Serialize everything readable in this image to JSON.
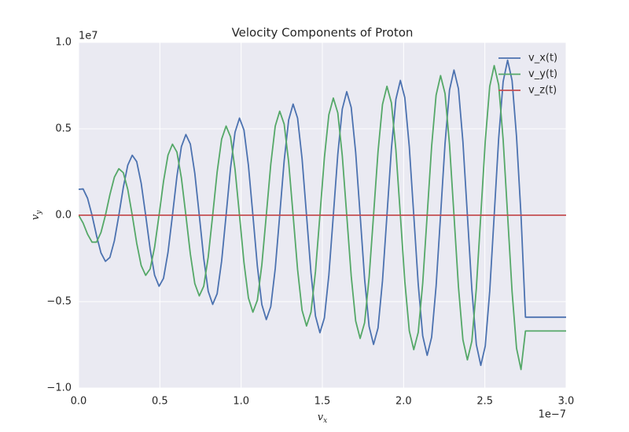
{
  "chart_data": {
    "type": "line",
    "title": "Velocity Components of Proton",
    "xlabel": {
      "text": "v",
      "subscript": "x"
    },
    "ylabel": {
      "text": "v",
      "subscript": "y"
    },
    "x_offset_label": "1e−7",
    "y_offset_label": "1e7",
    "xlim": [
      0,
      3.0
    ],
    "ylim": [
      -1.0,
      1.0
    ],
    "xticks": [
      {
        "value": 0,
        "label": "0.0"
      },
      {
        "value": 0.5,
        "label": "0.5"
      },
      {
        "value": 1.0,
        "label": "1.0"
      },
      {
        "value": 1.5,
        "label": "1.5"
      },
      {
        "value": 2.0,
        "label": "2.0"
      },
      {
        "value": 2.5,
        "label": "2.5"
      },
      {
        "value": 3.0,
        "label": "3.0"
      }
    ],
    "yticks": [
      {
        "value": -1.0,
        "label": "−1.0"
      },
      {
        "value": -0.5,
        "label": "−0.5"
      },
      {
        "value": 0,
        "label": "0.0"
      },
      {
        "value": 0.5,
        "label": "0.5"
      },
      {
        "value": 1.0,
        "label": "1.0"
      }
    ],
    "grid": true,
    "legend_position": "upper-right",
    "x": [
      0,
      0.0275,
      0.055,
      0.0825,
      0.11,
      0.1375,
      0.165,
      0.1925,
      0.22,
      0.2475,
      0.275,
      0.3025,
      0.33,
      0.3575,
      0.385,
      0.4125,
      0.44,
      0.4675,
      0.495,
      0.5225,
      0.55,
      0.5775,
      0.605,
      0.6325,
      0.66,
      0.6875,
      0.715,
      0.7425,
      0.77,
      0.7975,
      0.825,
      0.8525,
      0.88,
      0.9075,
      0.935,
      0.9625,
      0.99,
      1.0175,
      1.045,
      1.0725,
      1.1,
      1.1275,
      1.155,
      1.1825,
      1.21,
      1.2375,
      1.265,
      1.2925,
      1.32,
      1.3475,
      1.375,
      1.4025,
      1.43,
      1.4575,
      1.485,
      1.5125,
      1.54,
      1.5675,
      1.595,
      1.6225,
      1.65,
      1.6775,
      1.705,
      1.7325,
      1.76,
      1.7875,
      1.815,
      1.8425,
      1.87,
      1.8975,
      1.925,
      1.9525,
      1.98,
      2.0075,
      2.035,
      2.0625,
      2.09,
      2.1175,
      2.145,
      2.1725,
      2.2,
      2.2275,
      2.255,
      2.2825,
      2.31,
      2.3375,
      2.365,
      2.3925,
      2.42,
      2.4475,
      2.475,
      2.5025,
      2.53,
      2.5575,
      2.585,
      2.6125,
      2.64,
      2.6675,
      2.695,
      2.7225,
      2.75,
      3.0
    ],
    "series": [
      {
        "name": "v_x(t)",
        "color": "#4c72b0",
        "values": [
          0.15,
          0.152,
          0.098,
          0,
          -0.117,
          -0.218,
          -0.267,
          -0.244,
          -0.148,
          0,
          0.161,
          0.29,
          0.347,
          0.31,
          0.185,
          0,
          -0.195,
          -0.347,
          -0.411,
          -0.365,
          -0.215,
          0,
          0.225,
          0.397,
          0.467,
          0.412,
          0.242,
          0,
          -0.25,
          -0.44,
          -0.516,
          -0.454,
          -0.266,
          0,
          0.274,
          0.48,
          0.562,
          0.493,
          0.288,
          0,
          -0.295,
          -0.517,
          -0.604,
          -0.529,
          -0.309,
          0,
          0.315,
          0.551,
          0.643,
          0.562,
          0.328,
          0,
          -0.334,
          -0.583,
          -0.68,
          -0.594,
          -0.346,
          0,
          0.352,
          0.614,
          0.715,
          0.624,
          0.363,
          0,
          -0.369,
          -0.643,
          -0.748,
          -0.653,
          -0.38,
          0,
          0.385,
          0.671,
          0.78,
          0.68,
          0.395,
          0,
          -0.4,
          -0.698,
          -0.811,
          -0.706,
          -0.41,
          0,
          0.415,
          0.724,
          0.84,
          0.732,
          0.425,
          0,
          -0.43,
          -0.748,
          -0.869,
          -0.757,
          -0.439,
          0,
          0.444,
          0.773,
          0.897,
          0.78,
          0.453,
          0,
          -0.59,
          -0.59
        ]
      },
      {
        "name": "v_y(t)",
        "color": "#55a868",
        "values": [
          0,
          -0.045,
          -0.11,
          -0.156,
          -0.156,
          -0.1,
          0,
          0.119,
          0.22,
          0.269,
          0.246,
          0.149,
          0,
          -0.162,
          -0.291,
          -0.348,
          -0.311,
          -0.185,
          0,
          0.196,
          0.348,
          0.411,
          0.365,
          0.215,
          0,
          -0.224,
          -0.396,
          -0.467,
          -0.411,
          -0.242,
          0,
          0.25,
          0.44,
          0.516,
          0.453,
          0.266,
          0,
          -0.273,
          -0.479,
          -0.561,
          -0.492,
          -0.287,
          0,
          0.294,
          0.516,
          0.602,
          0.527,
          0.308,
          0,
          -0.314,
          -0.55,
          -0.641,
          -0.561,
          -0.327,
          0,
          0.333,
          0.582,
          0.678,
          0.592,
          0.345,
          0,
          -0.351,
          -0.612,
          -0.713,
          -0.622,
          -0.362,
          0,
          0.367,
          0.641,
          0.746,
          0.65,
          0.378,
          0,
          -0.384,
          -0.669,
          -0.778,
          -0.678,
          -0.394,
          0,
          0.399,
          0.695,
          0.808,
          0.704,
          0.409,
          0,
          -0.414,
          -0.721,
          -0.837,
          -0.729,
          -0.424,
          0,
          0.428,
          0.746,
          0.866,
          0.754,
          0.438,
          0,
          -0.442,
          -0.77,
          -0.893,
          -0.67,
          -0.67
        ]
      },
      {
        "name": "v_z(t)",
        "color": "#c44e52",
        "values": [
          0,
          0,
          0,
          0,
          0,
          0,
          0,
          0,
          0,
          0,
          0,
          0,
          0,
          0,
          0,
          0,
          0,
          0,
          0,
          0,
          0,
          0,
          0,
          0,
          0,
          0,
          0,
          0,
          0,
          0,
          0,
          0,
          0,
          0,
          0,
          0,
          0,
          0,
          0,
          0,
          0,
          0,
          0,
          0,
          0,
          0,
          0,
          0,
          0,
          0,
          0,
          0,
          0,
          0,
          0,
          0,
          0,
          0,
          0,
          0,
          0,
          0,
          0,
          0,
          0,
          0,
          0,
          0,
          0,
          0,
          0,
          0,
          0,
          0,
          0,
          0,
          0,
          0,
          0,
          0,
          0,
          0,
          0,
          0,
          0,
          0,
          0,
          0,
          0,
          0,
          0,
          0,
          0,
          0,
          0,
          0,
          0,
          0,
          0,
          0,
          0,
          0
        ]
      }
    ]
  }
}
